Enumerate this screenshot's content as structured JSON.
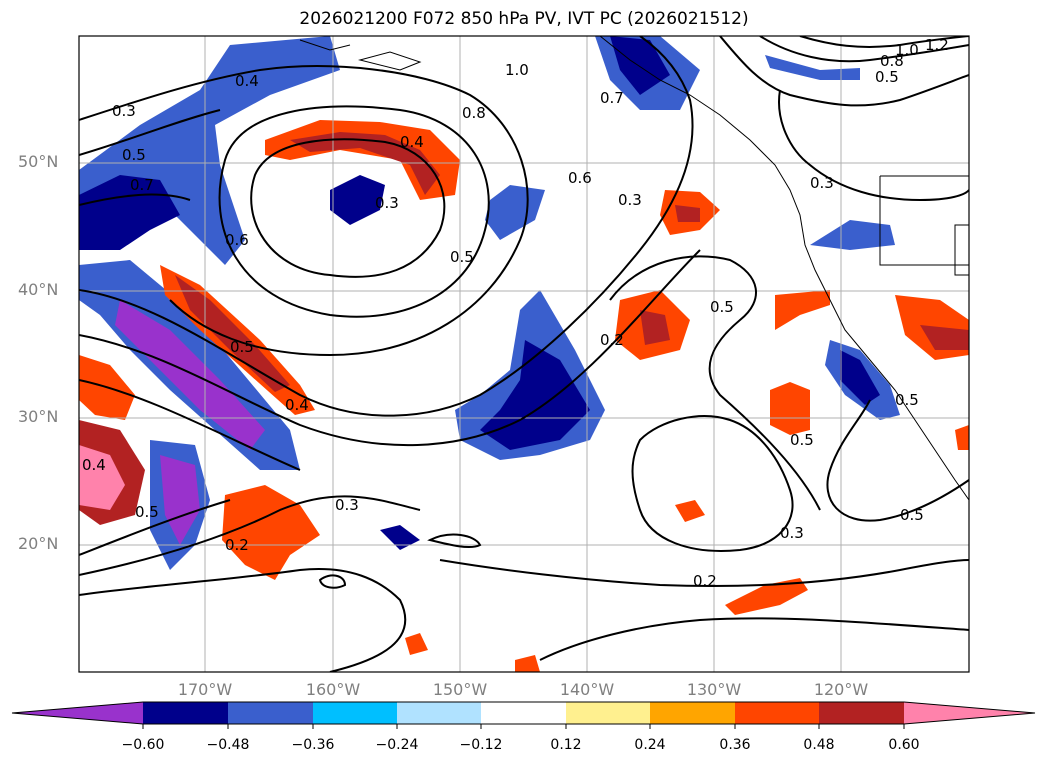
{
  "title": "2026021200 F072 850 hPa PV, IVT PC (2026021512)",
  "map": {
    "lat_labels": [
      "50°N",
      "40°N",
      "30°N",
      "20°N"
    ],
    "lon_labels": [
      "170°W",
      "160°W",
      "150°W",
      "140°W",
      "130°W",
      "120°W"
    ],
    "gridline_color": "#b0b0b0",
    "contour_color": "#000000",
    "contour_labels": [
      "0.4",
      "0.3",
      "0.5",
      "0.7",
      "0.6",
      "0.4",
      "0.3",
      "0.5",
      "1.0",
      "0.8",
      "0.7",
      "0.6",
      "0.3",
      "0.5",
      "0.2",
      "0.5",
      "0.5",
      "0.4",
      "0.4",
      "0.5",
      "0.3",
      "0.2",
      "0.3",
      "0.2",
      "0.5",
      "0.5",
      "0.3",
      "1.0",
      "1.2",
      "0.8",
      "0.5"
    ]
  },
  "colorbar": {
    "ticks": [
      "−0.60",
      "−0.48",
      "−0.36",
      "−0.24",
      "−0.12",
      "0.12",
      "0.24",
      "0.36",
      "0.48",
      "0.60"
    ],
    "colors": [
      "#9932cc",
      "#00008b",
      "#3a5fcd",
      "#00bfff",
      "#b0e2ff",
      "#ffffff",
      "#fff08f",
      "#ffa500",
      "#ff4500",
      "#b22222",
      "#ff82ab"
    ]
  }
}
